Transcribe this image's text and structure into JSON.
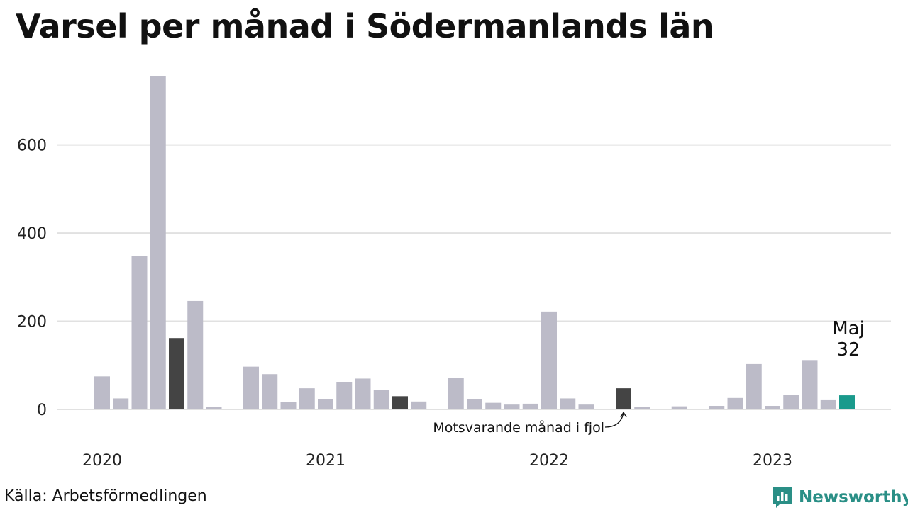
{
  "title": "Varsel per månad i Södermanlands län",
  "source": "Källa: Arbetsförmedlingen",
  "brand": {
    "name": "Newsworthy",
    "icon": "newsworthy-logo-icon",
    "color": "#2a8f86"
  },
  "colors": {
    "default": "#bcbbc8",
    "comparison": "#444444",
    "current": "#1a9a8c",
    "grid": "#e1e1e1"
  },
  "chart_data": {
    "type": "bar",
    "title": "Varsel per månad i Södermanlands län",
    "ylim": [
      0,
      760
    ],
    "yticks": [
      0,
      200,
      400,
      600
    ],
    "grid": true,
    "year_ticks": [
      {
        "label": "2020",
        "at": "2020-01"
      },
      {
        "label": "2021",
        "at": "2021-01"
      },
      {
        "label": "2022",
        "at": "2022-01"
      },
      {
        "label": "2023",
        "at": "2023-01"
      }
    ],
    "months": [
      "2020-01",
      "2020-02",
      "2020-03",
      "2020-04",
      "2020-05",
      "2020-06",
      "2020-07",
      "2020-08",
      "2020-09",
      "2020-10",
      "2020-11",
      "2020-12",
      "2021-01",
      "2021-02",
      "2021-03",
      "2021-04",
      "2021-05",
      "2021-06",
      "2021-07",
      "2021-08",
      "2021-09",
      "2021-10",
      "2021-11",
      "2021-12",
      "2022-01",
      "2022-02",
      "2022-03",
      "2022-04",
      "2022-05",
      "2022-06",
      "2022-07",
      "2022-08",
      "2022-09",
      "2022-10",
      "2022-11",
      "2022-12",
      "2023-01",
      "2023-02",
      "2023-03",
      "2023-04",
      "2023-05"
    ],
    "values": [
      75,
      25,
      348,
      757,
      162,
      246,
      5,
      0,
      97,
      80,
      17,
      48,
      23,
      62,
      70,
      45,
      30,
      18,
      0,
      71,
      24,
      15,
      11,
      13,
      222,
      25,
      11,
      0,
      48,
      6,
      0,
      7,
      0,
      8,
      26,
      103,
      8,
      33,
      112,
      21,
      32
    ],
    "comparison_months": [
      "2020-05",
      "2021-05",
      "2022-05"
    ],
    "current_month": "2023-05",
    "highlight": {
      "label": "Maj",
      "value": "32"
    },
    "annotation": {
      "text": "Motsvarande månad i fjol",
      "month": "2022-05"
    }
  }
}
